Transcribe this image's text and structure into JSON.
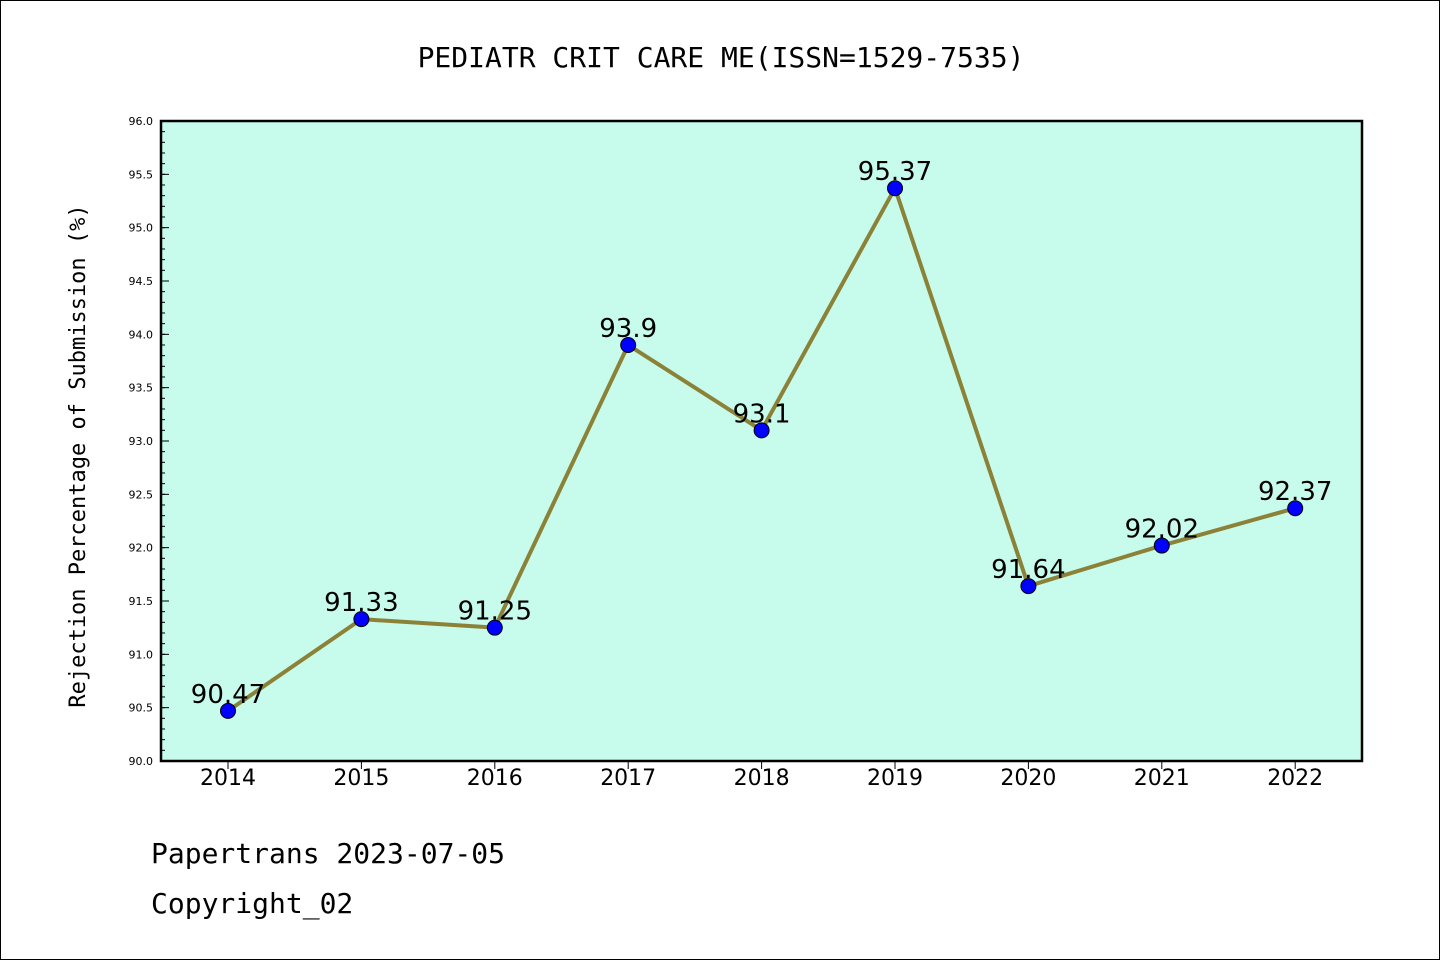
{
  "chart_data": {
    "type": "line",
    "title": "PEDIATR CRIT CARE ME(ISSN=1529-7535)",
    "ylabel": "Rejection Percentage of Submission (%)",
    "xlabel": "",
    "x": [
      "2014",
      "2015",
      "2016",
      "2017",
      "2018",
      "2019",
      "2020",
      "2021",
      "2022"
    ],
    "values": [
      90.47,
      91.33,
      91.25,
      93.9,
      93.1,
      95.37,
      91.64,
      92.02,
      92.37
    ],
    "data_labels": [
      "90.47",
      "91.33",
      "91.25",
      "93.9",
      "93.1",
      "95.37",
      "91.64",
      "92.02",
      "92.37"
    ],
    "ylim": [
      90.0,
      96.0
    ],
    "yticks": [
      "90.0",
      "90.5",
      "91.0",
      "91.5",
      "92.0",
      "92.5",
      "93.0",
      "93.5",
      "94.0",
      "94.5",
      "95.0",
      "95.5",
      "96.0"
    ],
    "grid": false,
    "colors": {
      "plot_background": "#c7fbec",
      "line": "#8b8238",
      "marker": "#0000ff"
    }
  },
  "footer": {
    "line1": "Papertrans 2023-07-05",
    "line2": "Copyright_02"
  }
}
